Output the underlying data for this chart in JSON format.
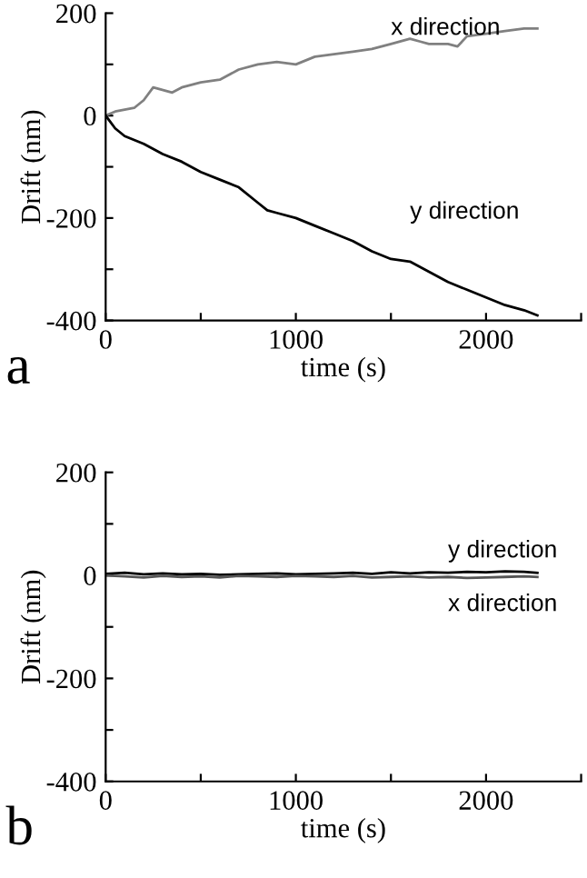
{
  "chart_data": [
    {
      "type": "line",
      "xlabel": "time (s)",
      "ylabel": "Drift (nm)",
      "annotations": [
        "a"
      ],
      "xlim": [
        0,
        2500
      ],
      "xticks": [
        0,
        {
          "value": 500,
          "label": null
        },
        1000,
        {
          "value": 1500,
          "label": null
        },
        2000,
        {
          "value": 2500,
          "label": null
        }
      ],
      "ylim": [
        -400,
        200
      ],
      "yticks": [
        -400,
        {
          "value": -300,
          "label": null
        },
        -200,
        {
          "value": -100,
          "label": null
        },
        0,
        {
          "value": 100,
          "label": null
        },
        200
      ],
      "grid": false,
      "legend": false,
      "marker": "none",
      "line_style": "solid",
      "series": [
        {
          "name": "x direction",
          "color": "#808080",
          "x": [
            0,
            50,
            150,
            200,
            250,
            350,
            400,
            500,
            600,
            700,
            800,
            900,
            1000,
            1100,
            1200,
            1300,
            1400,
            1500,
            1600,
            1650,
            1700,
            1800,
            1850,
            1900,
            2000,
            2100,
            2200,
            2270
          ],
          "values": [
            0,
            8,
            15,
            30,
            55,
            45,
            55,
            65,
            70,
            90,
            100,
            105,
            100,
            115,
            120,
            125,
            130,
            140,
            150,
            145,
            140,
            140,
            135,
            155,
            160,
            165,
            170,
            170
          ]
        },
        {
          "name": "y direction",
          "color": "#000000",
          "x": [
            0,
            50,
            100,
            200,
            300,
            400,
            500,
            600,
            700,
            800,
            850,
            900,
            1000,
            1100,
            1200,
            1300,
            1400,
            1500,
            1600,
            1700,
            1800,
            1900,
            2000,
            2100,
            2200,
            2270
          ],
          "values": [
            0,
            -25,
            -40,
            -55,
            -75,
            -90,
            -110,
            -125,
            -140,
            -170,
            -185,
            -190,
            -200,
            -215,
            -230,
            -245,
            -265,
            -280,
            -285,
            -305,
            -325,
            -340,
            -355,
            -370,
            -380,
            -390
          ]
        }
      ]
    },
    {
      "type": "line",
      "xlabel": "time (s)",
      "ylabel": "Drift (nm)",
      "annotations": [
        "b"
      ],
      "xlim": [
        0,
        2500
      ],
      "xticks": [
        0,
        {
          "value": 500,
          "label": null
        },
        1000,
        {
          "value": 1500,
          "label": null
        },
        2000,
        {
          "value": 2500,
          "label": null
        }
      ],
      "ylim": [
        -400,
        200
      ],
      "yticks": [
        -400,
        {
          "value": -300,
          "label": null
        },
        -200,
        {
          "value": -100,
          "label": null
        },
        0,
        {
          "value": 100,
          "label": null
        },
        200
      ],
      "grid": false,
      "legend": false,
      "marker": "none",
      "line_style": "solid",
      "series": [
        {
          "name": "y direction",
          "color": "#000000",
          "x": [
            0,
            100,
            200,
            300,
            400,
            500,
            600,
            700,
            800,
            900,
            1000,
            1100,
            1200,
            1300,
            1400,
            1500,
            1600,
            1700,
            1800,
            1900,
            2000,
            2100,
            2200,
            2270
          ],
          "values": [
            3,
            5,
            2,
            4,
            2,
            3,
            1,
            2,
            3,
            4,
            2,
            3,
            4,
            5,
            3,
            6,
            4,
            6,
            5,
            7,
            6,
            8,
            7,
            5
          ]
        },
        {
          "name": "x direction",
          "color": "#555555",
          "x": [
            0,
            100,
            200,
            300,
            400,
            500,
            600,
            700,
            800,
            900,
            1000,
            1100,
            1200,
            1300,
            1400,
            1500,
            1600,
            1700,
            1800,
            1900,
            2000,
            2100,
            2200,
            2270
          ],
          "values": [
            0,
            -2,
            -4,
            -1,
            -3,
            -2,
            -4,
            -1,
            -2,
            -3,
            -1,
            -2,
            -3,
            -1,
            -4,
            -3,
            -2,
            -4,
            -3,
            -5,
            -4,
            -3,
            -2,
            -3
          ]
        }
      ]
    }
  ]
}
